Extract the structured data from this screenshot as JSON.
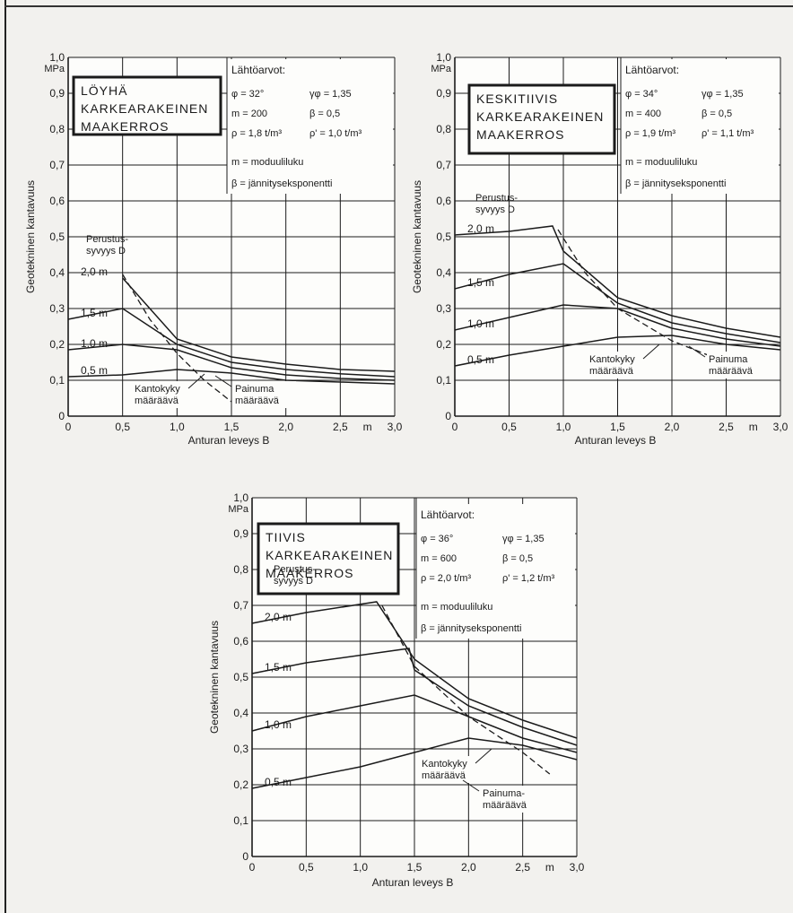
{
  "chart_data": [
    {
      "type": "line",
      "title": "",
      "xlabel": "Anturan leveys B",
      "ylabel": "Geotekninen kantavuus",
      "x_unit": "m",
      "y_unit": "MPa",
      "xlim": [
        0,
        3.0
      ],
      "ylim": [
        0,
        1.0
      ],
      "x_ticks": [
        "0",
        "0,5",
        "1,0",
        "1,5",
        "2,0",
        "2,5",
        "3,0"
      ],
      "y_ticks": [
        "0",
        "0,1",
        "0,2",
        "0,3",
        "0,4",
        "0,5",
        "0,6",
        "0,7",
        "0,8",
        "0,9",
        "1,0"
      ],
      "grid": true,
      "box_title": [
        "LÖYHÄ",
        "KARKEARAKEINEN",
        "MAAKERROS"
      ],
      "info_title": "Lähtöarvot:",
      "params": [
        [
          "φ = 32°",
          "γφ = 1,35"
        ],
        [
          "m = 200",
          "β = 0,5"
        ],
        [
          "ρ = 1,8 t/m³",
          "ρ' = 1,0 t/m³"
        ]
      ],
      "defs": [
        "m = moduuliluku",
        "β = jännityseksponentti"
      ],
      "depth_title": [
        "Perustus-",
        "syvyys D"
      ],
      "left_labels": [
        "Kantokyky",
        "määräävä"
      ],
      "right_labels": [
        "Painuma",
        "määräävä"
      ],
      "series": [
        {
          "name": "2,0 m",
          "points": [
            [
              0.5,
              0.385
            ],
            [
              1.0,
              0.215
            ],
            [
              1.5,
              0.165
            ],
            [
              2.0,
              0.145
            ],
            [
              2.5,
              0.13
            ],
            [
              3.0,
              0.125
            ]
          ]
        },
        {
          "name": "1,5 m",
          "points": [
            [
              0.0,
              0.27
            ],
            [
              0.5,
              0.3
            ],
            [
              1.0,
              0.2
            ],
            [
              1.5,
              0.15
            ],
            [
              2.0,
              0.13
            ],
            [
              2.5,
              0.118
            ],
            [
              3.0,
              0.11
            ]
          ]
        },
        {
          "name": "1,0 m",
          "points": [
            [
              0.0,
              0.185
            ],
            [
              0.5,
              0.2
            ],
            [
              1.0,
              0.185
            ],
            [
              1.5,
              0.135
            ],
            [
              2.0,
              0.115
            ],
            [
              2.5,
              0.105
            ],
            [
              3.0,
              0.1
            ]
          ]
        },
        {
          "name": "0,5 m",
          "points": [
            [
              0.0,
              0.11
            ],
            [
              0.5,
              0.115
            ],
            [
              1.0,
              0.13
            ],
            [
              1.5,
              0.12
            ],
            [
              2.0,
              0.1
            ],
            [
              2.5,
              0.095
            ],
            [
              3.0,
              0.09
            ]
          ]
        }
      ],
      "envelope": [
        [
          0.5,
          0.395
        ],
        [
          0.75,
          0.27
        ],
        [
          1.0,
          0.175
        ],
        [
          1.25,
          0.1
        ],
        [
          1.5,
          0.04
        ]
      ]
    },
    {
      "type": "line",
      "title": "",
      "xlabel": "Anturan leveys B",
      "ylabel": "Geotekninen kantavuus",
      "x_unit": "m",
      "y_unit": "MPa",
      "xlim": [
        0,
        3.0
      ],
      "ylim": [
        0,
        1.0
      ],
      "x_ticks": [
        "0",
        "0,5",
        "1,0",
        "1,5",
        "2,0",
        "2,5",
        "3,0"
      ],
      "y_ticks": [
        "0",
        "0,1",
        "0,2",
        "0,3",
        "0,4",
        "0,5",
        "0,6",
        "0,7",
        "0,8",
        "0,9",
        "1,0"
      ],
      "grid": true,
      "box_title": [
        "KESKITIIVIS",
        "KARKEARAKEINEN",
        "MAAKERROS"
      ],
      "info_title": "Lähtöarvot:",
      "params": [
        [
          "φ = 34°",
          "γφ = 1,35"
        ],
        [
          "m = 400",
          "β = 0,5"
        ],
        [
          "ρ = 1,9 t/m³",
          "ρ' = 1,1 t/m³"
        ]
      ],
      "defs": [
        "m = moduuliluku",
        "β = jännityseksponentti"
      ],
      "depth_title": [
        "Perustus-",
        "syvyys D"
      ],
      "left_labels": [
        "Kantokyky",
        "määräävä"
      ],
      "right_labels": [
        "Painuma",
        "määräävä"
      ],
      "series": [
        {
          "name": "2,0 m",
          "points": [
            [
              0.0,
              0.505
            ],
            [
              0.5,
              0.515
            ],
            [
              0.9,
              0.53
            ],
            [
              1.0,
              0.46
            ],
            [
              1.5,
              0.33
            ],
            [
              2.0,
              0.28
            ],
            [
              2.5,
              0.245
            ],
            [
              3.0,
              0.22
            ]
          ]
        },
        {
          "name": "1,5 m",
          "points": [
            [
              0.0,
              0.355
            ],
            [
              0.5,
              0.395
            ],
            [
              1.0,
              0.425
            ],
            [
              1.5,
              0.315
            ],
            [
              2.0,
              0.26
            ],
            [
              2.5,
              0.23
            ],
            [
              3.0,
              0.205
            ]
          ]
        },
        {
          "name": "1,0 m",
          "points": [
            [
              0.0,
              0.24
            ],
            [
              0.5,
              0.275
            ],
            [
              1.0,
              0.31
            ],
            [
              1.5,
              0.3
            ],
            [
              2.0,
              0.245
            ],
            [
              2.5,
              0.215
            ],
            [
              3.0,
              0.195
            ]
          ]
        },
        {
          "name": "0,5 m",
          "points": [
            [
              0.0,
              0.14
            ],
            [
              0.5,
              0.17
            ],
            [
              1.0,
              0.195
            ],
            [
              1.5,
              0.22
            ],
            [
              2.0,
              0.225
            ],
            [
              2.5,
              0.2
            ],
            [
              3.0,
              0.185
            ]
          ]
        }
      ],
      "envelope": [
        [
          0.95,
          0.52
        ],
        [
          1.2,
          0.4
        ],
        [
          1.5,
          0.3
        ],
        [
          2.0,
          0.21
        ],
        [
          2.5,
          0.15
        ],
        [
          2.85,
          0.11
        ]
      ]
    },
    {
      "type": "line",
      "title": "",
      "xlabel": "Anturan leveys B",
      "ylabel": "Geotekninen kantavuus",
      "x_unit": "m",
      "y_unit": "MPa",
      "xlim": [
        0,
        3.0
      ],
      "ylim": [
        0,
        1.0
      ],
      "x_ticks": [
        "0",
        "0,5",
        "1,0",
        "1,5",
        "2,0",
        "2,5",
        "3,0"
      ],
      "y_ticks": [
        "0",
        "0,1",
        "0,2",
        "0,3",
        "0,4",
        "0,5",
        "0,6",
        "0,7",
        "0,8",
        "0,9",
        "1,0"
      ],
      "grid": true,
      "box_title": [
        "TIIVIS",
        "KARKEARAKEINEN",
        "MAAKERROS"
      ],
      "info_title": "Lähtöarvot:",
      "params": [
        [
          "φ = 36°",
          "γφ = 1,35"
        ],
        [
          "m = 600",
          "β = 0,5"
        ],
        [
          "ρ = 2,0 t/m³",
          "ρ' = 1,2 t/m³"
        ]
      ],
      "defs": [
        "m = moduuliluku",
        "β = jännityseksponentti"
      ],
      "depth_title": [
        "Perustus-",
        "syvyys D"
      ],
      "left_labels": [
        "Kantokyky",
        "määräävä"
      ],
      "right_labels": [
        "Painuma-",
        "määräävä"
      ],
      "series": [
        {
          "name": "2,0 m",
          "points": [
            [
              0.0,
              0.65
            ],
            [
              0.5,
              0.68
            ],
            [
              1.15,
              0.71
            ],
            [
              1.5,
              0.55
            ],
            [
              2.0,
              0.44
            ],
            [
              2.5,
              0.38
            ],
            [
              3.0,
              0.33
            ]
          ]
        },
        {
          "name": "1,5 m",
          "points": [
            [
              0.0,
              0.51
            ],
            [
              0.5,
              0.54
            ],
            [
              1.45,
              0.58
            ],
            [
              1.5,
              0.52
            ],
            [
              2.0,
              0.42
            ],
            [
              2.5,
              0.36
            ],
            [
              3.0,
              0.31
            ]
          ]
        },
        {
          "name": "1,0 m",
          "points": [
            [
              0.0,
              0.35
            ],
            [
              0.5,
              0.39
            ],
            [
              1.0,
              0.42
            ],
            [
              1.5,
              0.45
            ],
            [
              2.0,
              0.39
            ],
            [
              2.5,
              0.33
            ],
            [
              3.0,
              0.29
            ]
          ]
        },
        {
          "name": "0,5 m",
          "points": [
            [
              0.0,
              0.19
            ],
            [
              0.5,
              0.22
            ],
            [
              1.0,
              0.25
            ],
            [
              1.5,
              0.29
            ],
            [
              2.0,
              0.33
            ],
            [
              2.5,
              0.31
            ],
            [
              3.0,
              0.27
            ]
          ]
        }
      ],
      "envelope": [
        [
          1.2,
          0.7
        ],
        [
          1.5,
          0.53
        ],
        [
          2.0,
          0.39
        ],
        [
          2.5,
          0.29
        ],
        [
          2.75,
          0.23
        ]
      ]
    }
  ]
}
